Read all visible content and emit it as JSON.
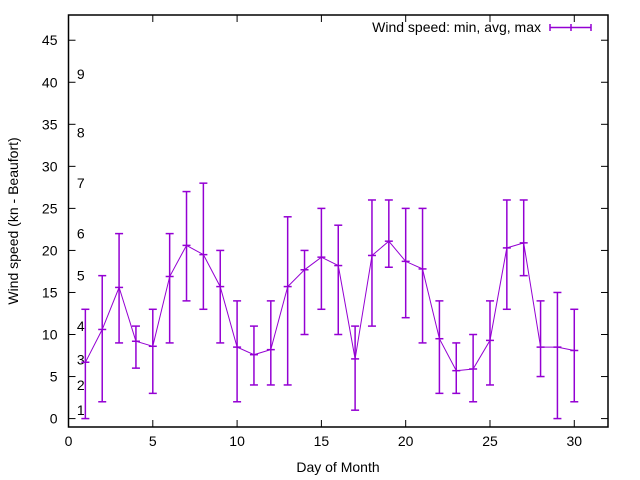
{
  "chart_data": {
    "type": "line",
    "subtype": "errorbars",
    "title": "",
    "xlabel": "Day of Month",
    "ylabel": "Wind speed (kn - Beaufort)",
    "xlim": [
      0,
      32
    ],
    "ylim": [
      -1,
      48
    ],
    "xticks": [
      0,
      5,
      10,
      15,
      20,
      25,
      30
    ],
    "yticks": [
      0,
      5,
      10,
      15,
      20,
      25,
      30,
      35,
      40,
      45
    ],
    "grid": false,
    "legend": {
      "position": "top-right",
      "entries": [
        "Wind speed: min, avg, max"
      ]
    },
    "series": [
      {
        "name": "Wind speed: min, avg, max",
        "color": "#9400d3",
        "x": [
          1,
          2,
          3,
          4,
          5,
          6,
          7,
          8,
          9,
          10,
          11,
          12,
          13,
          14,
          15,
          16,
          17,
          18,
          19,
          20,
          21,
          22,
          23,
          24,
          25,
          26,
          27,
          28,
          29,
          30
        ],
        "avg": [
          6.7,
          10.6,
          15.6,
          9.2,
          8.6,
          16.9,
          20.6,
          19.5,
          15.7,
          8.5,
          7.6,
          8.2,
          15.7,
          17.7,
          19.2,
          18.2,
          7.1,
          19.4,
          21.1,
          18.7,
          17.8,
          9.5,
          5.7,
          5.9,
          9.3,
          20.3,
          20.9,
          8.5,
          8.5,
          8.1
        ],
        "min": [
          0,
          2,
          9,
          6,
          3,
          9,
          14,
          13,
          9,
          2,
          4,
          4,
          4,
          10,
          13,
          10,
          1,
          11,
          18,
          12,
          9,
          3,
          3,
          2,
          4,
          13,
          17,
          5,
          0,
          2
        ],
        "max": [
          13,
          17,
          22,
          11,
          13,
          22,
          27,
          28,
          20,
          14,
          11,
          14,
          24,
          20,
          25,
          23,
          11,
          26,
          26,
          25,
          25,
          14,
          9,
          10,
          14,
          26,
          26,
          14,
          15,
          13
        ]
      }
    ],
    "annotations": [
      {
        "text": "1",
        "x": 0.5,
        "y": 1
      },
      {
        "text": "2",
        "x": 0.5,
        "y": 4
      },
      {
        "text": "3",
        "x": 0.5,
        "y": 7
      },
      {
        "text": "4",
        "x": 0.5,
        "y": 11
      },
      {
        "text": "5",
        "x": 0.5,
        "y": 17
      },
      {
        "text": "6",
        "x": 0.5,
        "y": 22
      },
      {
        "text": "7",
        "x": 0.5,
        "y": 28
      },
      {
        "text": "8",
        "x": 0.5,
        "y": 34
      },
      {
        "text": "9",
        "x": 0.5,
        "y": 41
      }
    ]
  }
}
